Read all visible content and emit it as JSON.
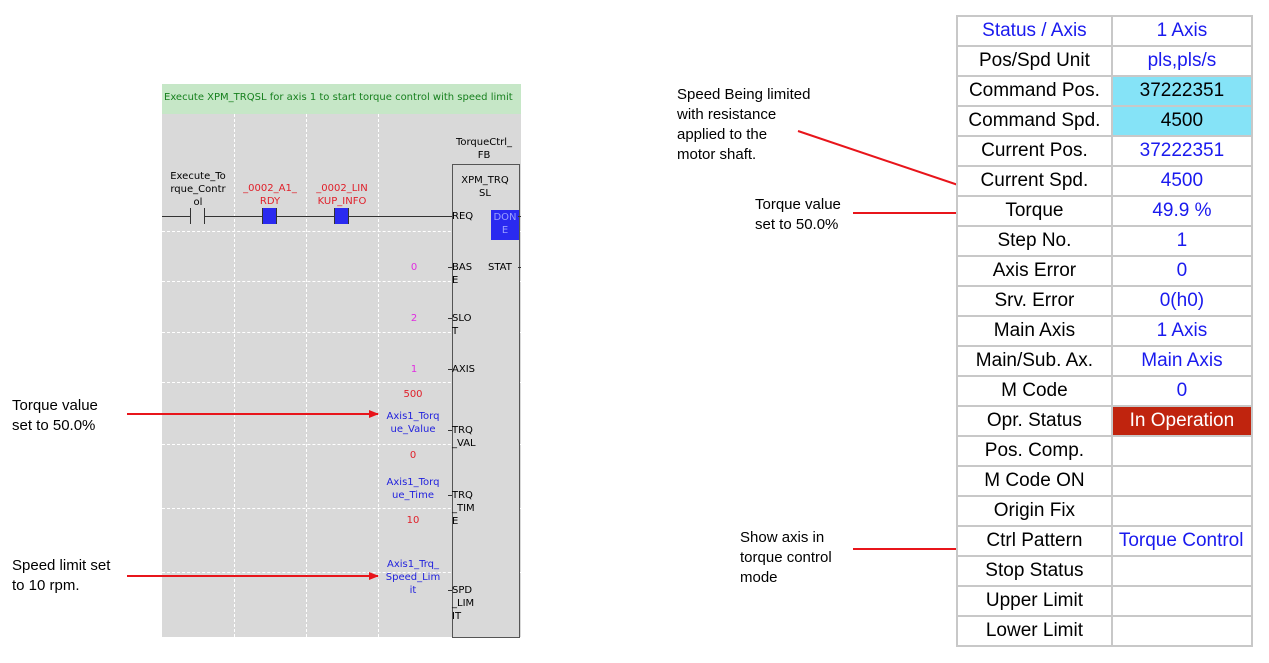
{
  "ladder": {
    "header": "Execute XPM_TRQSL for axis 1 to start torque control with speed limit",
    "fb_name_top": "TorqueCtrl_\nFB",
    "fb_type": "XPM_TRQ\nSL",
    "contact1": "Execute_To\nrque_Contr\nol",
    "contact2": "_0002_A1_\nRDY",
    "contact3": "_0002_LIN\nKUP_INFO",
    "done_label": "DON\nE",
    "pins": {
      "req": "REQ",
      "base": "BAS\nE",
      "slot": "SLO\nT",
      "axis": "AXIS",
      "trq_val": "TRQ\n_VAL",
      "trq_tim": "TRQ\n_TIM\nE",
      "spd_lim": "SPD\n_LIM\nIT",
      "stat": "STAT"
    },
    "values": {
      "base": "0",
      "slot": "2",
      "axis": "1",
      "trq_const": "500",
      "trq_var": "Axis1_Torq\nue_Value",
      "time_const": "0",
      "time_var": "Axis1_Torq\nue_Time",
      "spd_const": "10",
      "spd_var": "Axis1_Trq_\nSpeed_Lim\nit"
    }
  },
  "annotations": {
    "left_torque": "Torque value\nset to 50.0%",
    "left_speed": "Speed limit set\nto 10 rpm.",
    "speed_limited": "Speed Being limited\nwith resistance\napplied to the\nmotor shaft.",
    "right_torque": "Torque value\nset to 50.0%",
    "ctrl_mode": "Show axis in\ntorque control\nmode"
  },
  "status_table": {
    "header": [
      "Status / Axis",
      "1 Axis"
    ],
    "rows": [
      [
        "Pos/Spd Unit",
        "pls,pls/s"
      ],
      [
        "Command Pos.",
        "37222351"
      ],
      [
        "Command Spd.",
        "4500"
      ],
      [
        "Current Pos.",
        "37222351"
      ],
      [
        "Current Spd.",
        "4500"
      ],
      [
        "Torque",
        "49.9 %"
      ],
      [
        "Step No.",
        "1"
      ],
      [
        "Axis Error",
        "0"
      ],
      [
        "Srv. Error",
        "0(h0)"
      ],
      [
        "Main Axis",
        "1 Axis"
      ],
      [
        "Main/Sub. Ax.",
        "Main Axis"
      ],
      [
        "M Code",
        "0"
      ],
      [
        "Opr. Status",
        "In Operation"
      ],
      [
        "Pos. Comp.",
        ""
      ],
      [
        "M Code ON",
        ""
      ],
      [
        "Origin Fix",
        ""
      ],
      [
        "Ctrl Pattern",
        "Torque Control"
      ],
      [
        "Stop Status",
        ""
      ],
      [
        "Upper Limit",
        ""
      ],
      [
        "Lower Limit",
        ""
      ]
    ]
  },
  "colors": {
    "arrow": "#e8151b",
    "highlight": "#85e3f7",
    "operation": "#c0240e",
    "value_blue": "#1a1aee",
    "header_green": "#c6e7c7"
  }
}
